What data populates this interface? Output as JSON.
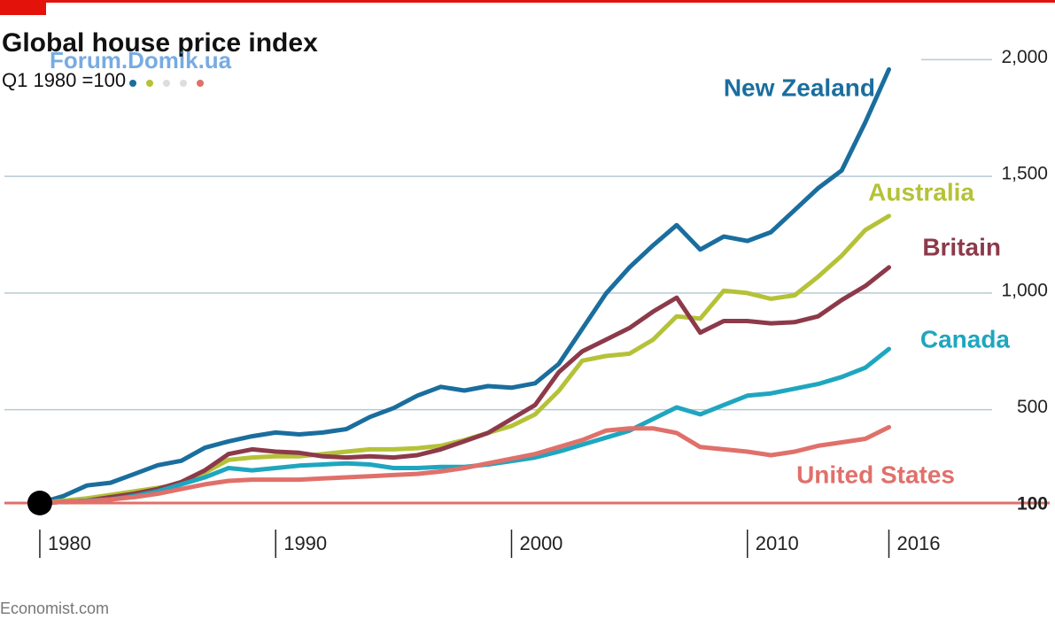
{
  "chart_data": {
    "type": "line",
    "title": "Global house price index",
    "subtitle": "Q1 1980 =100",
    "source": "Economist.com",
    "watermark": "Forum.Domik.ua",
    "x": [
      1980,
      1981,
      1982,
      1983,
      1984,
      1985,
      1986,
      1987,
      1988,
      1989,
      1990,
      1991,
      1992,
      1993,
      1994,
      1995,
      1996,
      1997,
      1998,
      1999,
      2000,
      2001,
      2002,
      2003,
      2004,
      2005,
      2006,
      2007,
      2008,
      2009,
      2010,
      2011,
      2012,
      2013,
      2014,
      2015,
      2016
    ],
    "xlim": [
      1978.5,
      2020
    ],
    "xticks": [
      1980,
      1990,
      2000,
      2010,
      2016
    ],
    "ylim": [
      100,
      2100
    ],
    "yticks": [
      100,
      500,
      {
        "value": 1000,
        "label": "1,000"
      },
      {
        "value": 1500,
        "label": "1,500"
      },
      {
        "value": 2000,
        "label": "2,000"
      }
    ],
    "grid": true,
    "series": [
      {
        "name": "New Zealand",
        "color": "#1a6e9e",
        "values": [
          100,
          130,
          175,
          187,
          224,
          262,
          281,
          337,
          364,
          386,
          402,
          394,
          402,
          417,
          469,
          507,
          560,
          598,
          582,
          601,
          594,
          613,
          696,
          846,
          997,
          1110,
          1204,
          1291,
          1186,
          1242,
          1223,
          1261,
          1355,
          1449,
          1525,
          1732,
          1958
        ]
      },
      {
        "name": "Australia",
        "color": "#b5c238",
        "values": [
          100,
          110,
          120,
          135,
          150,
          165,
          180,
          230,
          285,
          295,
          300,
          300,
          310,
          320,
          330,
          330,
          335,
          345,
          370,
          400,
          430,
          480,
          580,
          710,
          730,
          740,
          800,
          900,
          890,
          1010,
          1000,
          975,
          990,
          1070,
          1160,
          1270,
          1330
        ]
      },
      {
        "name": "Britain",
        "color": "#8c3a4a",
        "values": [
          100,
          105,
          110,
          125,
          140,
          160,
          190,
          240,
          310,
          330,
          320,
          315,
          300,
          295,
          300,
          295,
          305,
          330,
          365,
          400,
          460,
          520,
          660,
          750,
          800,
          850,
          920,
          980,
          830,
          880,
          880,
          870,
          875,
          900,
          970,
          1030,
          1110
        ]
      },
      {
        "name": "Canada",
        "color": "#1fa6bf",
        "values": [
          100,
          105,
          110,
          115,
          130,
          150,
          180,
          210,
          250,
          240,
          250,
          260,
          265,
          270,
          265,
          250,
          250,
          255,
          255,
          265,
          280,
          295,
          320,
          350,
          380,
          410,
          460,
          510,
          480,
          520,
          560,
          570,
          590,
          610,
          640,
          680,
          760
        ]
      },
      {
        "name": "United States",
        "color": "#e0706a",
        "values": [
          100,
          105,
          108,
          115,
          125,
          140,
          160,
          180,
          195,
          200,
          200,
          200,
          205,
          210,
          215,
          220,
          225,
          235,
          250,
          270,
          290,
          310,
          340,
          370,
          410,
          420,
          420,
          400,
          340,
          330,
          320,
          305,
          320,
          345,
          360,
          375,
          425
        ]
      }
    ]
  }
}
